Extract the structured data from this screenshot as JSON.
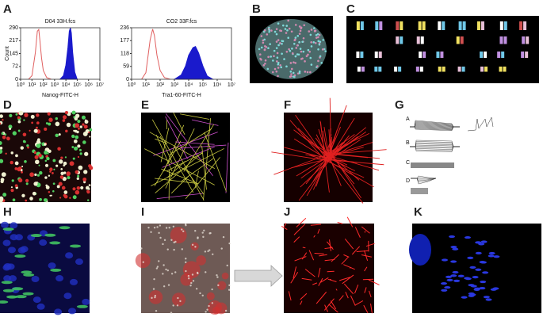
{
  "panel_labels": [
    "A",
    "B",
    "C",
    "D",
    "E",
    "F",
    "G",
    "H",
    "I",
    "J",
    "K"
  ],
  "g_sublabels": [
    "A",
    "B",
    "C",
    "D"
  ],
  "chart_data": [
    {
      "type": "histogram",
      "title": "D04 33H.fcs",
      "xlabel": "Nanog-FITC-H",
      "ylabel": "Count",
      "xscale": "log",
      "xlim": [
        1,
        10000000
      ],
      "xticks": [
        {
          "value": 1,
          "label": "10⁰"
        },
        {
          "value": 10,
          "label": "10¹"
        },
        {
          "value": 100,
          "label": "10²"
        },
        {
          "value": 1000,
          "label": "10³"
        },
        {
          "value": 10000,
          "label": "10⁴"
        },
        {
          "value": 100000,
          "label": "10⁵"
        },
        {
          "value": 1000000,
          "label": "10⁶"
        },
        {
          "value": 10000000,
          "label": "10⁷"
        }
      ],
      "ylim": [
        0,
        290
      ],
      "yticks": [
        0,
        72,
        145,
        217,
        290
      ],
      "series": [
        {
          "color": "#e06060",
          "fill": false,
          "x": [
            5,
            10,
            20,
            30,
            40,
            50,
            70,
            100,
            200,
            500
          ],
          "values": [
            0,
            20,
            150,
            270,
            280,
            220,
            120,
            50,
            10,
            0
          ]
        },
        {
          "color": "#1a1acc",
          "fill": true,
          "x": [
            3000,
            6000,
            10000,
            15000,
            20000,
            25000,
            30000,
            40000,
            60000,
            100000
          ],
          "values": [
            0,
            20,
            80,
            180,
            270,
            290,
            260,
            150,
            40,
            0
          ]
        }
      ]
    },
    {
      "type": "histogram",
      "title": "CO2 33F.fcs",
      "xlabel": "Tra1-60-FITC-H",
      "xscale": "log",
      "xlim": [
        1,
        10000000
      ],
      "xticks": [
        {
          "value": 1,
          "label": "10⁰"
        },
        {
          "value": 10,
          "label": "10¹"
        },
        {
          "value": 100,
          "label": "10²"
        },
        {
          "value": 1000,
          "label": "10³"
        },
        {
          "value": 10000,
          "label": "10⁴"
        },
        {
          "value": 100000,
          "label": "10⁵"
        },
        {
          "value": 1000000,
          "label": "10⁶"
        },
        {
          "value": 10000000,
          "label": "10⁷"
        }
      ],
      "ylim": [
        0,
        236
      ],
      "yticks": [
        0,
        59,
        118,
        177,
        236
      ],
      "series": [
        {
          "color": "#e06060",
          "fill": false,
          "x": [
            5,
            10,
            20,
            30,
            40,
            60,
            100,
            200,
            500
          ],
          "values": [
            0,
            30,
            180,
            230,
            200,
            110,
            40,
            8,
            0
          ]
        },
        {
          "color": "#1a1acc",
          "fill": true,
          "x": [
            1000,
            3000,
            6000,
            10000,
            20000,
            30000,
            50000,
            100000,
            200000,
            500000
          ],
          "values": [
            0,
            20,
            60,
            110,
            145,
            150,
            120,
            60,
            15,
            0
          ]
        }
      ]
    }
  ]
}
